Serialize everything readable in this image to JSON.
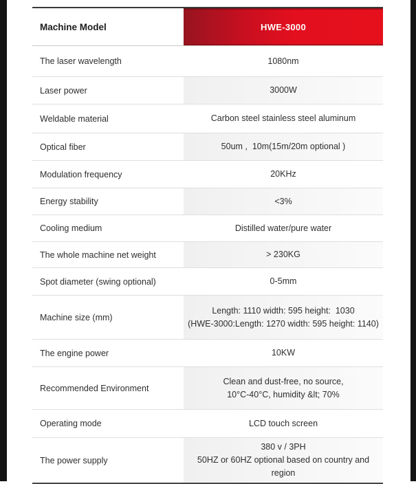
{
  "frame": {
    "side_bar_color": "#141414"
  },
  "table": {
    "accent_color": "#e30f1e",
    "header": {
      "label": "Machine Model",
      "value": "HWE-3000"
    },
    "rows": [
      {
        "label": "The laser wavelength",
        "value": "1080nm"
      },
      {
        "label": "Laser power",
        "value": "3000W"
      },
      {
        "label": "Weldable material",
        "value": "Carbon steel stainless steel aluminum"
      },
      {
        "label": "Optical fiber",
        "value": "50um ,  10m(15m/20m optional )"
      },
      {
        "label": "Modulation frequency",
        "value": "20KHz"
      },
      {
        "label": "Energy stability",
        "value": "<3%"
      },
      {
        "label": "Cooling medium",
        "value": "Distilled water/pure water"
      },
      {
        "label": "The whole machine net weight",
        "value": "> 230KG"
      },
      {
        "label": "Spot diameter (swing optional)",
        "value": "0-5mm"
      },
      {
        "label": "Machine size (mm)",
        "value": "Length: 1110 width: 595 height:  1030\n(HWE-3000:Length: 1270 width: 595 height: 1140)"
      },
      {
        "label": "The engine power",
        "value": "10KW"
      },
      {
        "label": "Recommended Environment",
        "value": "Clean and dust-free, no source,\n10°C-40°C, humidity &lt; 70%"
      },
      {
        "label": "Operating mode",
        "value": "LCD touch screen"
      },
      {
        "label": "The power supply",
        "value": "380 v / 3PH\n50HZ or 60HZ optional based on country and  region"
      }
    ]
  }
}
